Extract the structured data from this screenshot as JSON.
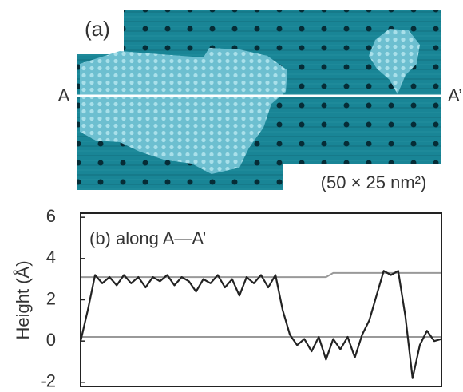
{
  "image_panel": {
    "label": "(a)",
    "left_marker": "A",
    "right_marker": "A’",
    "scale": "(50 × 25 nm²)"
  },
  "chart_data": {
    "type": "line",
    "title": "(b) along A—A’",
    "y_label": "Height (Å)",
    "ylim": [
      -2.2,
      6.2
    ],
    "yticks": [
      -2,
      0,
      2,
      4,
      6
    ],
    "xlim": [
      0,
      100
    ],
    "x": [
      0,
      2,
      4,
      6,
      8,
      10,
      12,
      14,
      16,
      18,
      20,
      22,
      24,
      26,
      28,
      30,
      32,
      34,
      36,
      38,
      40,
      42,
      44,
      46,
      48,
      50,
      52,
      54,
      56,
      58,
      60,
      62,
      64,
      66,
      68,
      70,
      72,
      74,
      76,
      78,
      80,
      82,
      84,
      86,
      88,
      90,
      92,
      94,
      96,
      98,
      100
    ],
    "series": [
      {
        "color": "#999999",
        "values": [
          3.1,
          3.1,
          3.1,
          3.1,
          3.1,
          3.1,
          3.1,
          3.1,
          3.1,
          3.1,
          3.1,
          3.1,
          3.1,
          3.1,
          3.1,
          3.1,
          3.1,
          3.1,
          3.1,
          3.1,
          3.1,
          3.1,
          3.1,
          3.1,
          3.1,
          3.1,
          3.1,
          3.1,
          3.1,
          3.1,
          3.1,
          3.1,
          3.1,
          3.1,
          3.1,
          3.3,
          3.3,
          3.3,
          3.3,
          3.3,
          3.3,
          3.3,
          3.3,
          3.3,
          3.3,
          3.3,
          3.3,
          3.3,
          3.3,
          3.3,
          3.3
        ]
      },
      {
        "color": "#999999",
        "values": [
          0.2,
          0.2,
          0.2,
          0.2,
          0.2,
          0.2,
          0.2,
          0.2,
          0.2,
          0.2,
          0.2,
          0.2,
          0.2,
          0.2,
          0.2,
          0.2,
          0.2,
          0.2,
          0.2,
          0.2,
          0.2,
          0.2,
          0.2,
          0.2,
          0.2,
          0.2,
          0.2,
          0.2,
          0.2,
          0.2,
          0.2,
          0.2,
          0.2,
          0.2,
          0.2,
          0.2,
          0.2,
          0.2,
          0.2,
          0.2,
          0.2,
          0.2,
          0.2,
          0.2,
          0.2,
          0.2,
          0.2,
          0.2,
          0.2,
          0.2,
          0.2
        ]
      },
      {
        "color": "#222222",
        "values": [
          0,
          1.5,
          3.2,
          2.8,
          3.1,
          2.7,
          3.2,
          2.8,
          3.1,
          2.6,
          3.1,
          2.9,
          3.2,
          2.7,
          3.1,
          2.9,
          2.4,
          3.0,
          2.8,
          3.2,
          2.6,
          3.0,
          2.2,
          3.1,
          2.8,
          3.2,
          2.6,
          3.2,
          1.5,
          0.3,
          -0.2,
          0.1,
          -0.5,
          0.2,
          -0.9,
          0.1,
          -0.4,
          0.2,
          -0.8,
          0.3,
          1.0,
          2.2,
          3.4,
          3.2,
          3.4,
          1.2,
          -1.8,
          -0.2,
          0.5,
          0.0,
          0.1
        ]
      }
    ]
  }
}
